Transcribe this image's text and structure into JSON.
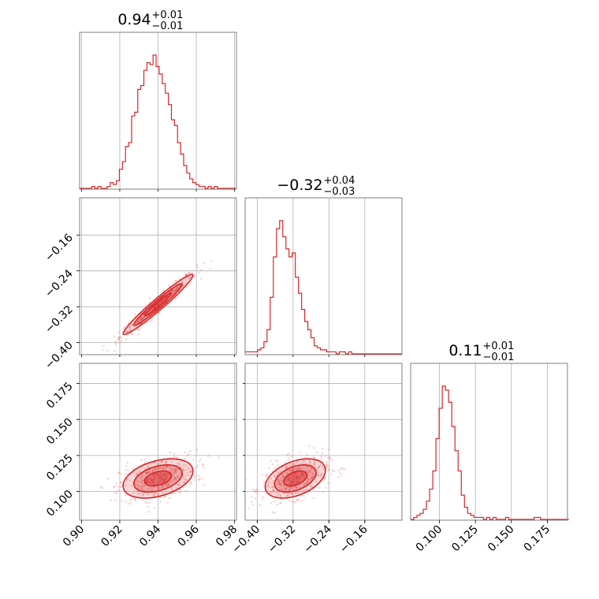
{
  "chart_data": {
    "type": "corner",
    "color": "#d62728",
    "params": [
      {
        "label": "",
        "axis_range": [
          0.899,
          0.981
        ],
        "ticks": [
          0.9,
          0.92,
          0.94,
          0.96,
          0.98
        ],
        "tick_labels": [
          "0.90",
          "0.92",
          "0.94",
          "0.96",
          "0.98"
        ],
        "title": {
          "value": "0.94",
          "plus": "+0.01",
          "minus": "−0.01"
        },
        "median": 0.94,
        "sigma": 0.0087
      },
      {
        "label": "",
        "axis_range": [
          -0.427,
          -0.077
        ],
        "ticks": [
          -0.4,
          -0.32,
          -0.24,
          -0.16
        ],
        "tick_labels": [
          "−0.40",
          "−0.32",
          "−0.24",
          "−0.16"
        ],
        "title": {
          "value": "−0.32",
          "plus": "+0.04",
          "minus": "−0.03"
        },
        "median": -0.315,
        "sigma": 0.032
      },
      {
        "label": "",
        "axis_range": [
          0.08,
          0.189
        ],
        "ticks": [
          0.1,
          0.125,
          0.15,
          0.175
        ],
        "tick_labels": [
          "0.100",
          "0.125",
          "0.150",
          "0.175"
        ],
        "title": {
          "value": "0.11",
          "plus": "+0.01",
          "minus": "−0.01"
        },
        "median": 0.109,
        "sigma": 0.0065
      }
    ],
    "hist_1d": [
      {
        "x_start": 0.899,
        "bin_width": 0.0016,
        "counts": [
          0,
          0,
          0,
          0,
          1,
          0,
          1,
          0,
          0,
          1,
          3,
          2,
          4,
          10,
          14,
          22,
          24,
          38,
          40,
          52,
          54,
          62,
          66,
          65,
          70,
          64,
          60,
          55,
          50,
          44,
          36,
          33,
          24,
          18,
          12,
          8,
          5,
          3,
          2,
          1,
          1,
          0,
          1,
          0,
          1,
          0,
          0,
          0,
          0,
          0,
          0
        ]
      },
      {
        "x_start": -0.427,
        "bin_width": 0.007,
        "counts": [
          1,
          1,
          1,
          1,
          2,
          3,
          6,
          12,
          28,
          48,
          62,
          66,
          58,
          52,
          48,
          50,
          38,
          30,
          22,
          16,
          12,
          8,
          4,
          3,
          2,
          2,
          1,
          1,
          1,
          0,
          1,
          1,
          0,
          1,
          0,
          0,
          0,
          0,
          0,
          0,
          0,
          0,
          0,
          0,
          0,
          0,
          0,
          0,
          0,
          0
        ]
      },
      {
        "x_start": 0.08,
        "bin_width": 0.0022,
        "counts": [
          0,
          1,
          2,
          3,
          5,
          9,
          15,
          24,
          40,
          55,
          66,
          64,
          58,
          46,
          34,
          24,
          12,
          6,
          3,
          2,
          1,
          1,
          1,
          0,
          1,
          0,
          1,
          0,
          0,
          0,
          1,
          0,
          0,
          0,
          0,
          0,
          0,
          0,
          0,
          1,
          1,
          0,
          0,
          0,
          0,
          0,
          0,
          0,
          0,
          0
        ]
      }
    ],
    "correlations": {
      "0-1": 0.97,
      "0-2": 0.38,
      "1-2": 0.42
    },
    "layout": "lower-triangle 3x3",
    "grid": true
  }
}
